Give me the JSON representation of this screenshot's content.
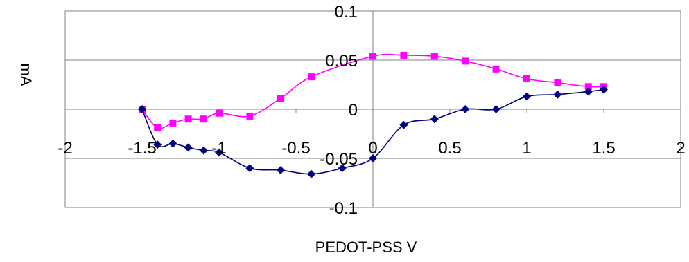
{
  "chart_data": {
    "type": "line",
    "title": "",
    "xlabel": "PEDOT-PSS V",
    "ylabel": "mA",
    "xlim": [
      -2,
      2
    ],
    "ylim": [
      -0.1,
      0.1
    ],
    "xticks": [
      "-2",
      "-1.5",
      "-1",
      "-0.5",
      "0",
      "0.5",
      "1",
      "1.5",
      "2"
    ],
    "yticks": [
      "-0.1",
      "-0.05",
      "0",
      "0.05",
      "0.1"
    ],
    "grid": "horizontal",
    "legend": "none",
    "series": [
      {
        "color": "#FF00FF",
        "marker": "square",
        "x": [
          -1.5,
          -1.4,
          -1.3,
          -1.2,
          -1.1,
          -1.0,
          -0.8,
          -0.6,
          -0.4,
          0.0,
          0.2,
          0.4,
          0.6,
          0.8,
          1.0,
          1.2,
          1.4,
          1.5
        ],
        "y": [
          0.0,
          -0.019,
          -0.014,
          -0.01,
          -0.01,
          -0.004,
          -0.007,
          0.011,
          0.033,
          0.054,
          0.055,
          0.054,
          0.049,
          0.041,
          0.031,
          0.027,
          0.023,
          0.023
        ]
      },
      {
        "color": "#000080",
        "marker": "diamond",
        "x": [
          -1.5,
          -1.4,
          -1.3,
          -1.2,
          -1.1,
          -1.0,
          -0.8,
          -0.6,
          -0.4,
          -0.2,
          0.0,
          0.2,
          0.4,
          0.6,
          0.8,
          1.0,
          1.2,
          1.4,
          1.5
        ],
        "y": [
          0.0,
          -0.036,
          -0.035,
          -0.039,
          -0.042,
          -0.044,
          -0.06,
          -0.062,
          -0.066,
          -0.06,
          -0.05,
          -0.016,
          -0.01,
          0.0,
          0.0,
          0.013,
          0.015,
          0.018,
          0.02
        ]
      }
    ]
  }
}
